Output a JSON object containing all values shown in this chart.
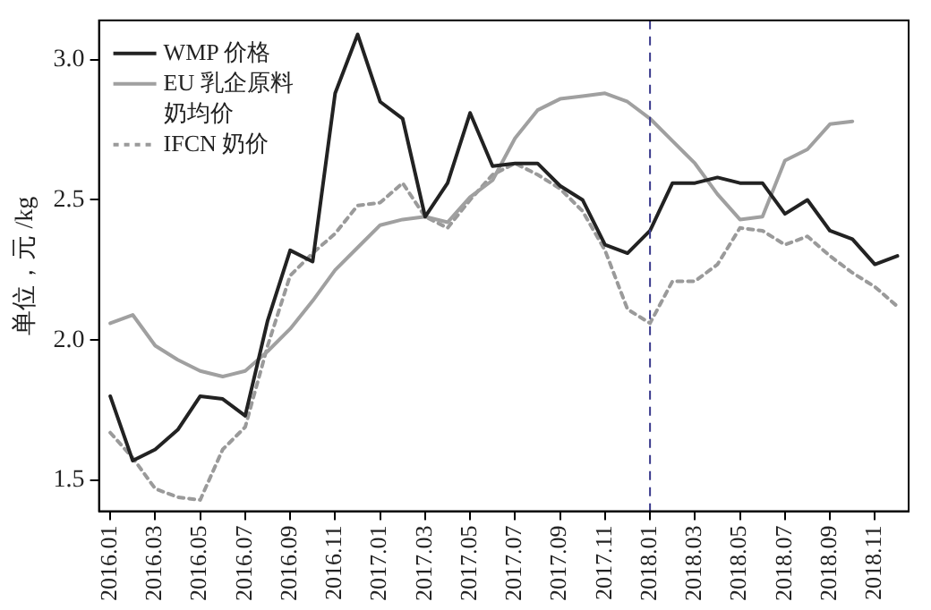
{
  "chart_data": {
    "type": "line",
    "ylabel": "单位，元 /kg",
    "categories": [
      "2016.01",
      null,
      "2016.03",
      null,
      "2016.05",
      null,
      "2016.07",
      null,
      "2016.09",
      null,
      "2016.11",
      null,
      "2017.01",
      null,
      "2017.03",
      null,
      "2017.05",
      null,
      "2017.07",
      null,
      "2017.09",
      null,
      "2017.11",
      null,
      "2018.01",
      null,
      "2018.03",
      null,
      "2018.05",
      null,
      "2018.07",
      null,
      "2018.09",
      null,
      "2018.11",
      null
    ],
    "series": [
      {
        "name": "WMP 价格",
        "color": "#222222",
        "line_style": "solid",
        "values": [
          1.8,
          1.57,
          1.61,
          1.68,
          1.8,
          1.79,
          1.73,
          2.07,
          2.32,
          2.28,
          2.88,
          3.09,
          2.85,
          2.79,
          2.44,
          2.56,
          2.81,
          2.62,
          2.63,
          2.63,
          2.55,
          2.5,
          2.34,
          2.31,
          2.39,
          2.56,
          2.56,
          2.58,
          2.56,
          2.56,
          2.45,
          2.5,
          2.39,
          2.36,
          2.27,
          2.3
        ]
      },
      {
        "name": "EU 乳企原料奶均价",
        "color": "#a0a0a0",
        "line_style": "solid",
        "values": [
          2.06,
          2.09,
          1.98,
          1.93,
          1.89,
          1.87,
          1.89,
          1.96,
          2.04,
          2.14,
          2.25,
          2.33,
          2.41,
          2.43,
          2.44,
          2.42,
          2.51,
          2.57,
          2.72,
          2.82,
          2.86,
          2.87,
          2.88,
          2.85,
          2.79,
          2.71,
          2.63,
          2.52,
          2.43,
          2.44,
          2.64,
          2.68,
          2.77,
          2.78,
          null,
          null
        ]
      },
      {
        "name": "IFCN 奶价",
        "color": "#9a9a9a",
        "line_style": "dotted",
        "values": [
          1.67,
          1.58,
          1.47,
          1.44,
          1.43,
          1.61,
          1.69,
          1.98,
          2.23,
          2.31,
          2.38,
          2.48,
          2.49,
          2.56,
          2.44,
          2.4,
          2.5,
          2.59,
          2.63,
          2.59,
          2.54,
          2.46,
          2.32,
          2.11,
          2.06,
          2.21,
          2.21,
          2.27,
          2.4,
          2.39,
          2.34,
          2.37,
          2.3,
          2.24,
          2.19,
          2.12
        ]
      }
    ],
    "ylim": [
      1.39,
      3.14
    ],
    "yticks": [
      {
        "value": 1.5,
        "label": "1.5"
      },
      {
        "value": 2.0,
        "label": "2.0"
      },
      {
        "value": 2.5,
        "label": "2.5"
      },
      {
        "value": 3.0,
        "label": "3.0"
      }
    ],
    "ref_lines": [
      {
        "axis": "x",
        "value": "2018.01",
        "color": "#3a3a8c",
        "line_style": "dashed"
      }
    ],
    "grid": false,
    "legend": "top left",
    "marker": "none"
  }
}
